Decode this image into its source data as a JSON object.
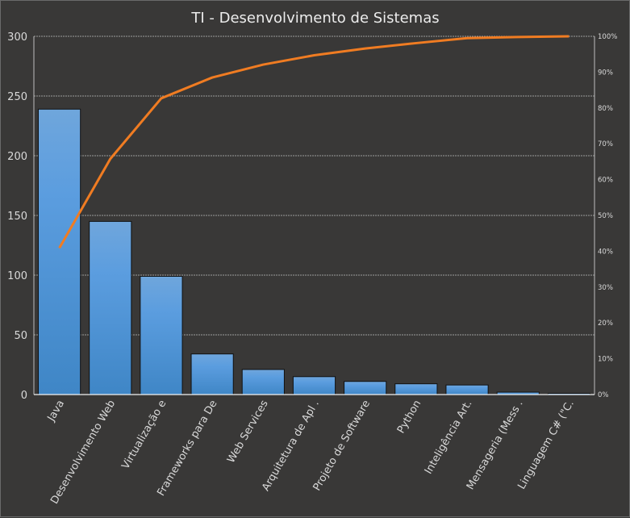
{
  "chart_data": {
    "type": "bar",
    "title": "TI - Desenvolvimento  de Sistemas",
    "categories": [
      "Java",
      "Desenvolvimento Web",
      "Virtualização e",
      "Frameworks para De",
      "Web Services",
      "Arquitetura  de Apl .",
      "Projeto de Software",
      "Python",
      "Inteligência Art.",
      "Mensageria (Mess .",
      "Linguagem C# (\"C."
    ],
    "series": [
      {
        "type": "bar",
        "values": [
          239,
          145,
          99,
          34,
          21,
          15,
          11,
          9,
          8,
          2,
          1
        ],
        "color": "#4a8fd3"
      },
      {
        "type": "line",
        "axis": "secondary",
        "values": [
          40.9,
          65.8,
          82.7,
          88.5,
          92.1,
          94.7,
          96.6,
          98.1,
          99.5,
          99.8,
          100
        ],
        "color": "#f07c22"
      }
    ],
    "ylim": [
      0,
      300
    ],
    "yticks": [
      "0",
      "50",
      "100",
      "150",
      "200",
      "250",
      "300"
    ],
    "y2lim": [
      0,
      100
    ],
    "y2ticks": [
      "0%",
      "10%",
      "20%",
      "30%",
      "40%",
      "50%",
      "60%",
      "70%",
      "80%",
      "90%",
      "100%"
    ],
    "grid": true,
    "legend": "none"
  }
}
